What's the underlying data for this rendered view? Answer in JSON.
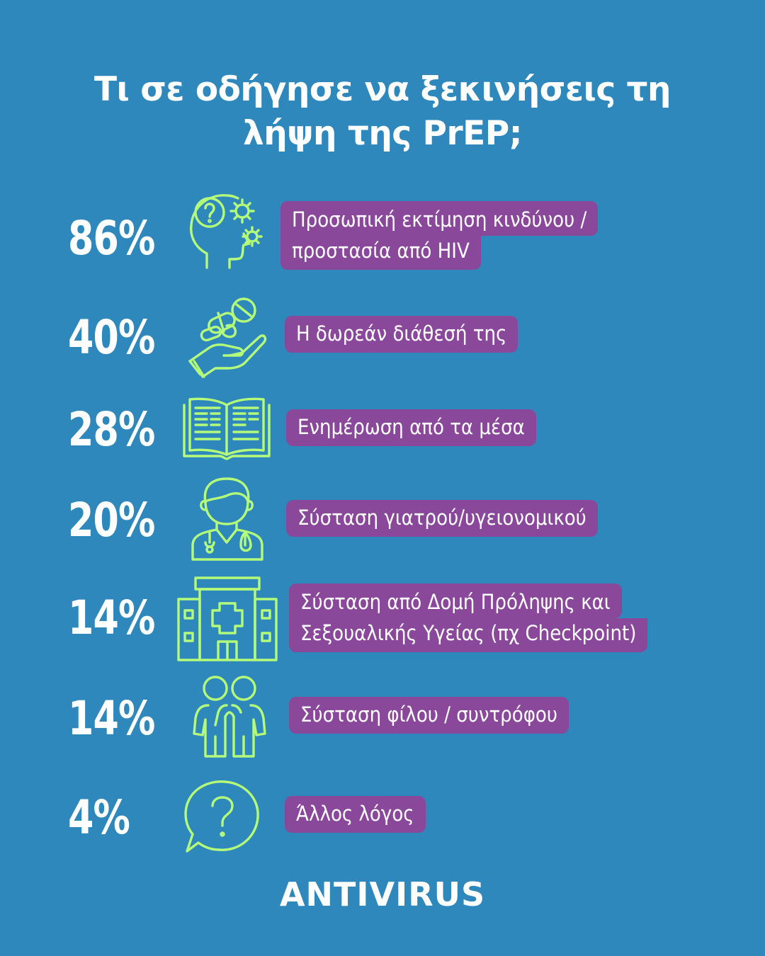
{
  "title": {
    "line1": "Τι σε οδήγησε να ξεκινήσεις τη",
    "line2": "λήψη της PrEP;"
  },
  "items": [
    {
      "percent": "86%",
      "icon": "head-question-gears-icon",
      "lines": [
        "Προσωπική εκτίμηση κινδύνου /",
        "προστασία από HIV"
      ]
    },
    {
      "percent": "40%",
      "icon": "hand-holding-pills-icon",
      "lines": [
        "Η δωρεάν διάθεσή της"
      ]
    },
    {
      "percent": "28%",
      "icon": "open-book-icon",
      "lines": [
        "Ενημέρωση από τα μέσα"
      ]
    },
    {
      "percent": "20%",
      "icon": "doctor-icon",
      "lines": [
        "Σύσταση γιατρού/υγειονομικού"
      ]
    },
    {
      "percent": "14%",
      "icon": "hospital-building-icon",
      "lines": [
        "Σύσταση από Δομή Πρόληψης και",
        "Σεξουαλικής Υγείας (πχ Checkpoint)"
      ]
    },
    {
      "percent": "14%",
      "icon": "two-friends-icon",
      "lines": [
        "Σύσταση φίλου / συντρόφου"
      ]
    },
    {
      "percent": "4%",
      "icon": "question-bubble-icon",
      "lines": [
        "Άλλος λόγος"
      ]
    }
  ],
  "logo": "ANTIVIRUS",
  "colors": {
    "background": "#2e88bb",
    "label_bg": "#8a489a",
    "icon": "#b4fb7a",
    "text": "#ffffff"
  }
}
